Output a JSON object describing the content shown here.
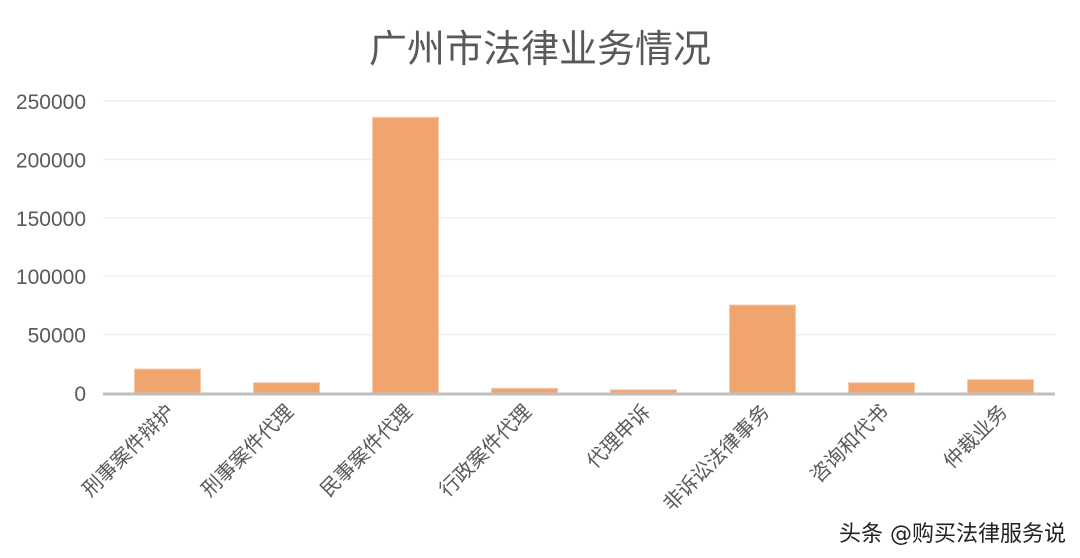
{
  "chart_data": {
    "type": "bar",
    "title": "广州市法律业务情况",
    "categories": [
      "刑事案件辩护",
      "刑事案件代理",
      "民事案件代理",
      "行政案件代理",
      "代理申诉",
      "非诉讼法律事务",
      "咨询和代书",
      "仲裁业务"
    ],
    "values": [
      20500,
      8800,
      236000,
      4000,
      2800,
      75300,
      8800,
      11400
    ],
    "ylim": [
      0,
      250000
    ],
    "yticks": [
      0,
      50000,
      100000,
      150000,
      200000,
      250000
    ],
    "grid": true,
    "legend": "none",
    "colors": {
      "bar": "#F0A46E",
      "grid": "#EFEFEF",
      "axis": "#BFBFBF",
      "tick_text": "#595959"
    }
  },
  "watermark": "头条 @购买法律服务说"
}
